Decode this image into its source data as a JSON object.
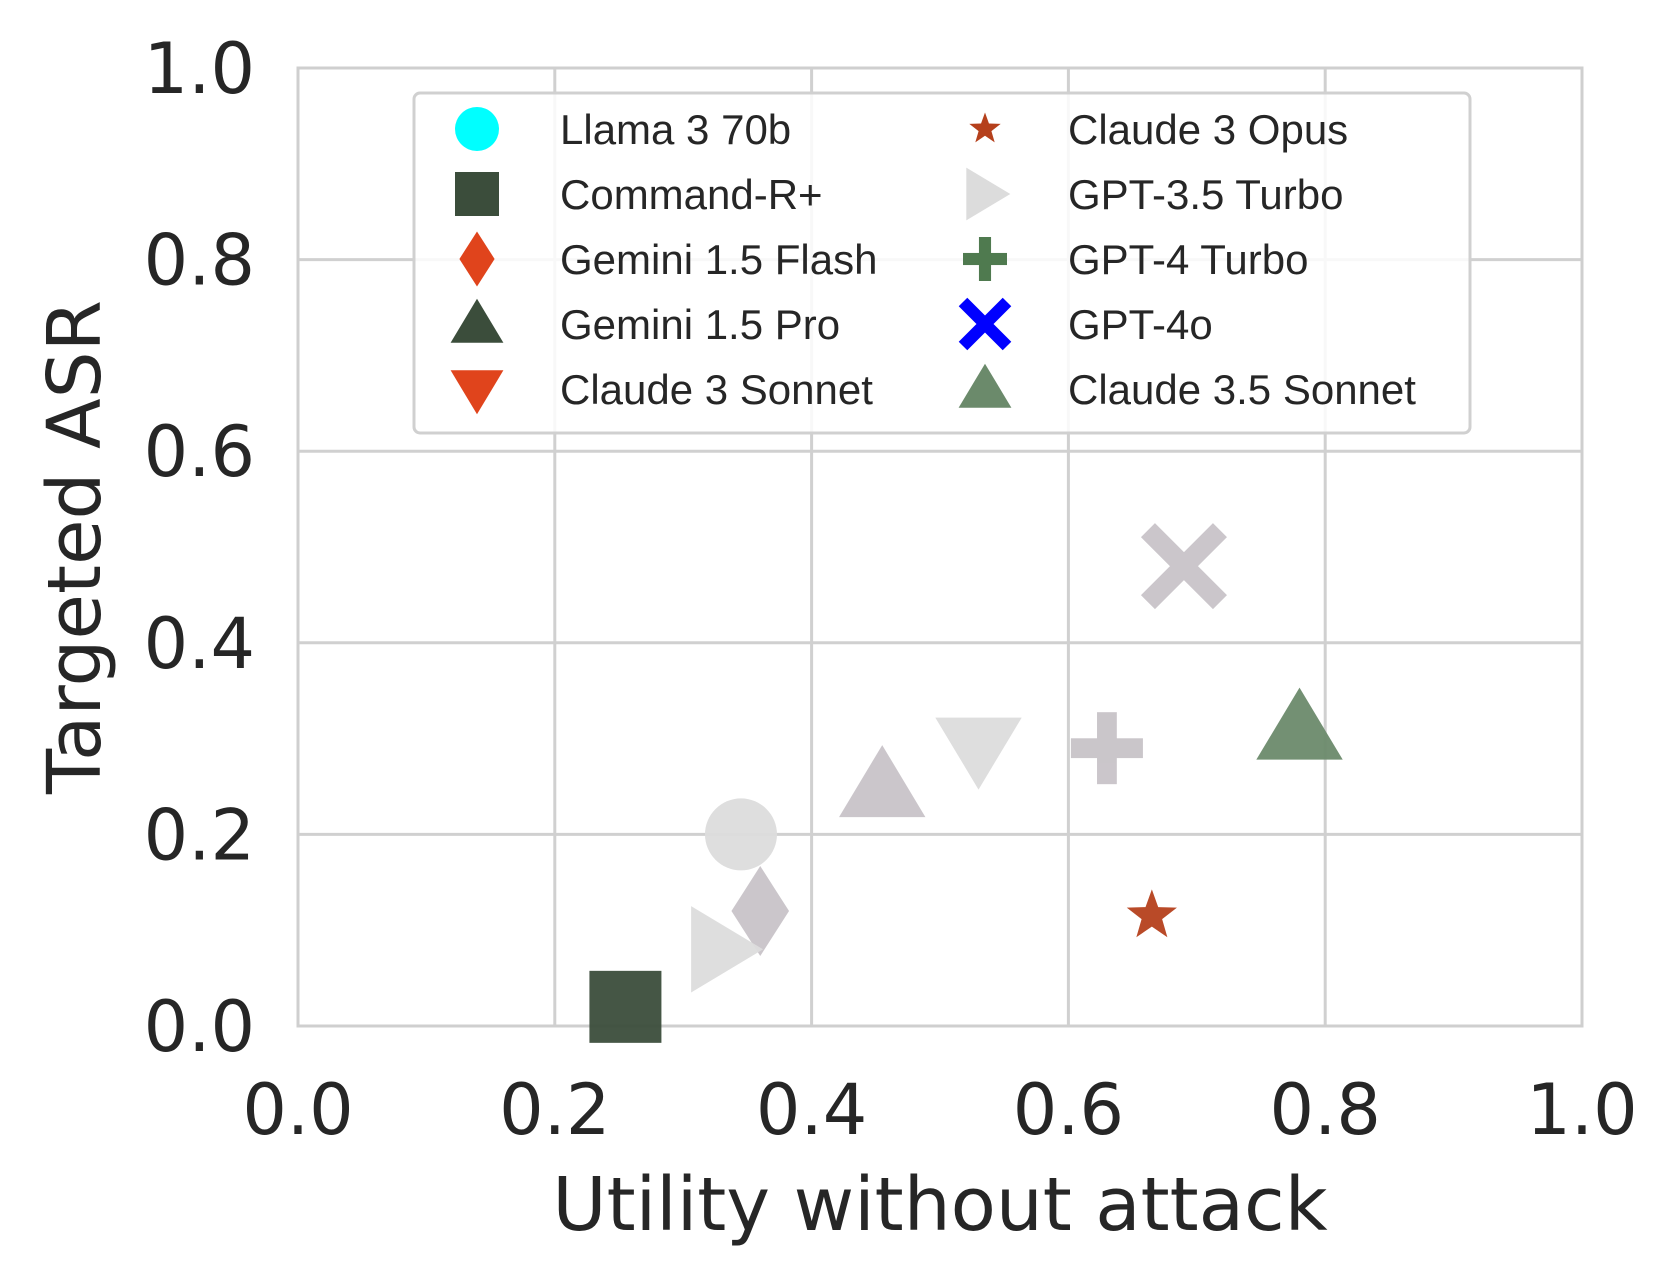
{
  "chart_data": {
    "type": "scatter",
    "title": "",
    "xlabel": "Utility without attack",
    "ylabel": "Targeted ASR",
    "xlim": [
      0.0,
      1.0
    ],
    "ylim": [
      0.0,
      1.0
    ],
    "xticks": [
      "0.0",
      "0.2",
      "0.4",
      "0.6",
      "0.8",
      "1.0"
    ],
    "yticks": [
      "0.0",
      "0.2",
      "0.4",
      "0.6",
      "0.8",
      "1.0"
    ],
    "grid": true,
    "legend_position": "top-center",
    "legend_columns": 2,
    "series": [
      {
        "name": "Llama 3 70b",
        "marker": "circle",
        "legend_color": "#00ffff",
        "point_color": "#dcdcdc",
        "x": 0.345,
        "y": 0.2
      },
      {
        "name": "Command-R+",
        "marker": "square",
        "legend_color": "#3b4d3b",
        "point_color": "#3b4d3b",
        "x": 0.255,
        "y": 0.02
      },
      {
        "name": "Gemini 1.5 Flash",
        "marker": "diamond",
        "legend_color": "#e0441c",
        "point_color": "#c8c3c8",
        "x": 0.36,
        "y": 0.12
      },
      {
        "name": "Gemini 1.5 Pro",
        "marker": "triangle-up",
        "legend_color": "#3b4d3b",
        "point_color": "#c8c3c8",
        "x": 0.455,
        "y": 0.25
      },
      {
        "name": "Claude 3 Sonnet",
        "marker": "triangle-down",
        "legend_color": "#e0441c",
        "point_color": "#dcdcdc",
        "x": 0.53,
        "y": 0.29
      },
      {
        "name": "Claude 3 Opus",
        "marker": "star",
        "legend_color": "#b5401c",
        "point_color": "#b5401c",
        "x": 0.665,
        "y": 0.115
      },
      {
        "name": "GPT-3.5 Turbo",
        "marker": "triangle-right",
        "legend_color": "#dcdcdc",
        "point_color": "#dcdcdc",
        "x": 0.33,
        "y": 0.08
      },
      {
        "name": "GPT-4 Turbo",
        "marker": "plus",
        "legend_color": "#4f7a4f",
        "point_color": "#c8c3c8",
        "x": 0.63,
        "y": 0.29
      },
      {
        "name": "GPT-4o",
        "marker": "x",
        "legend_color": "#0000ff",
        "point_color": "#c8c3c8",
        "x": 0.69,
        "y": 0.48
      },
      {
        "name": "Claude 3.5 Sonnet",
        "marker": "triangle-up",
        "legend_color": "#6b8a6b",
        "point_color": "#6b8a6b",
        "x": 0.78,
        "y": 0.31
      }
    ]
  }
}
